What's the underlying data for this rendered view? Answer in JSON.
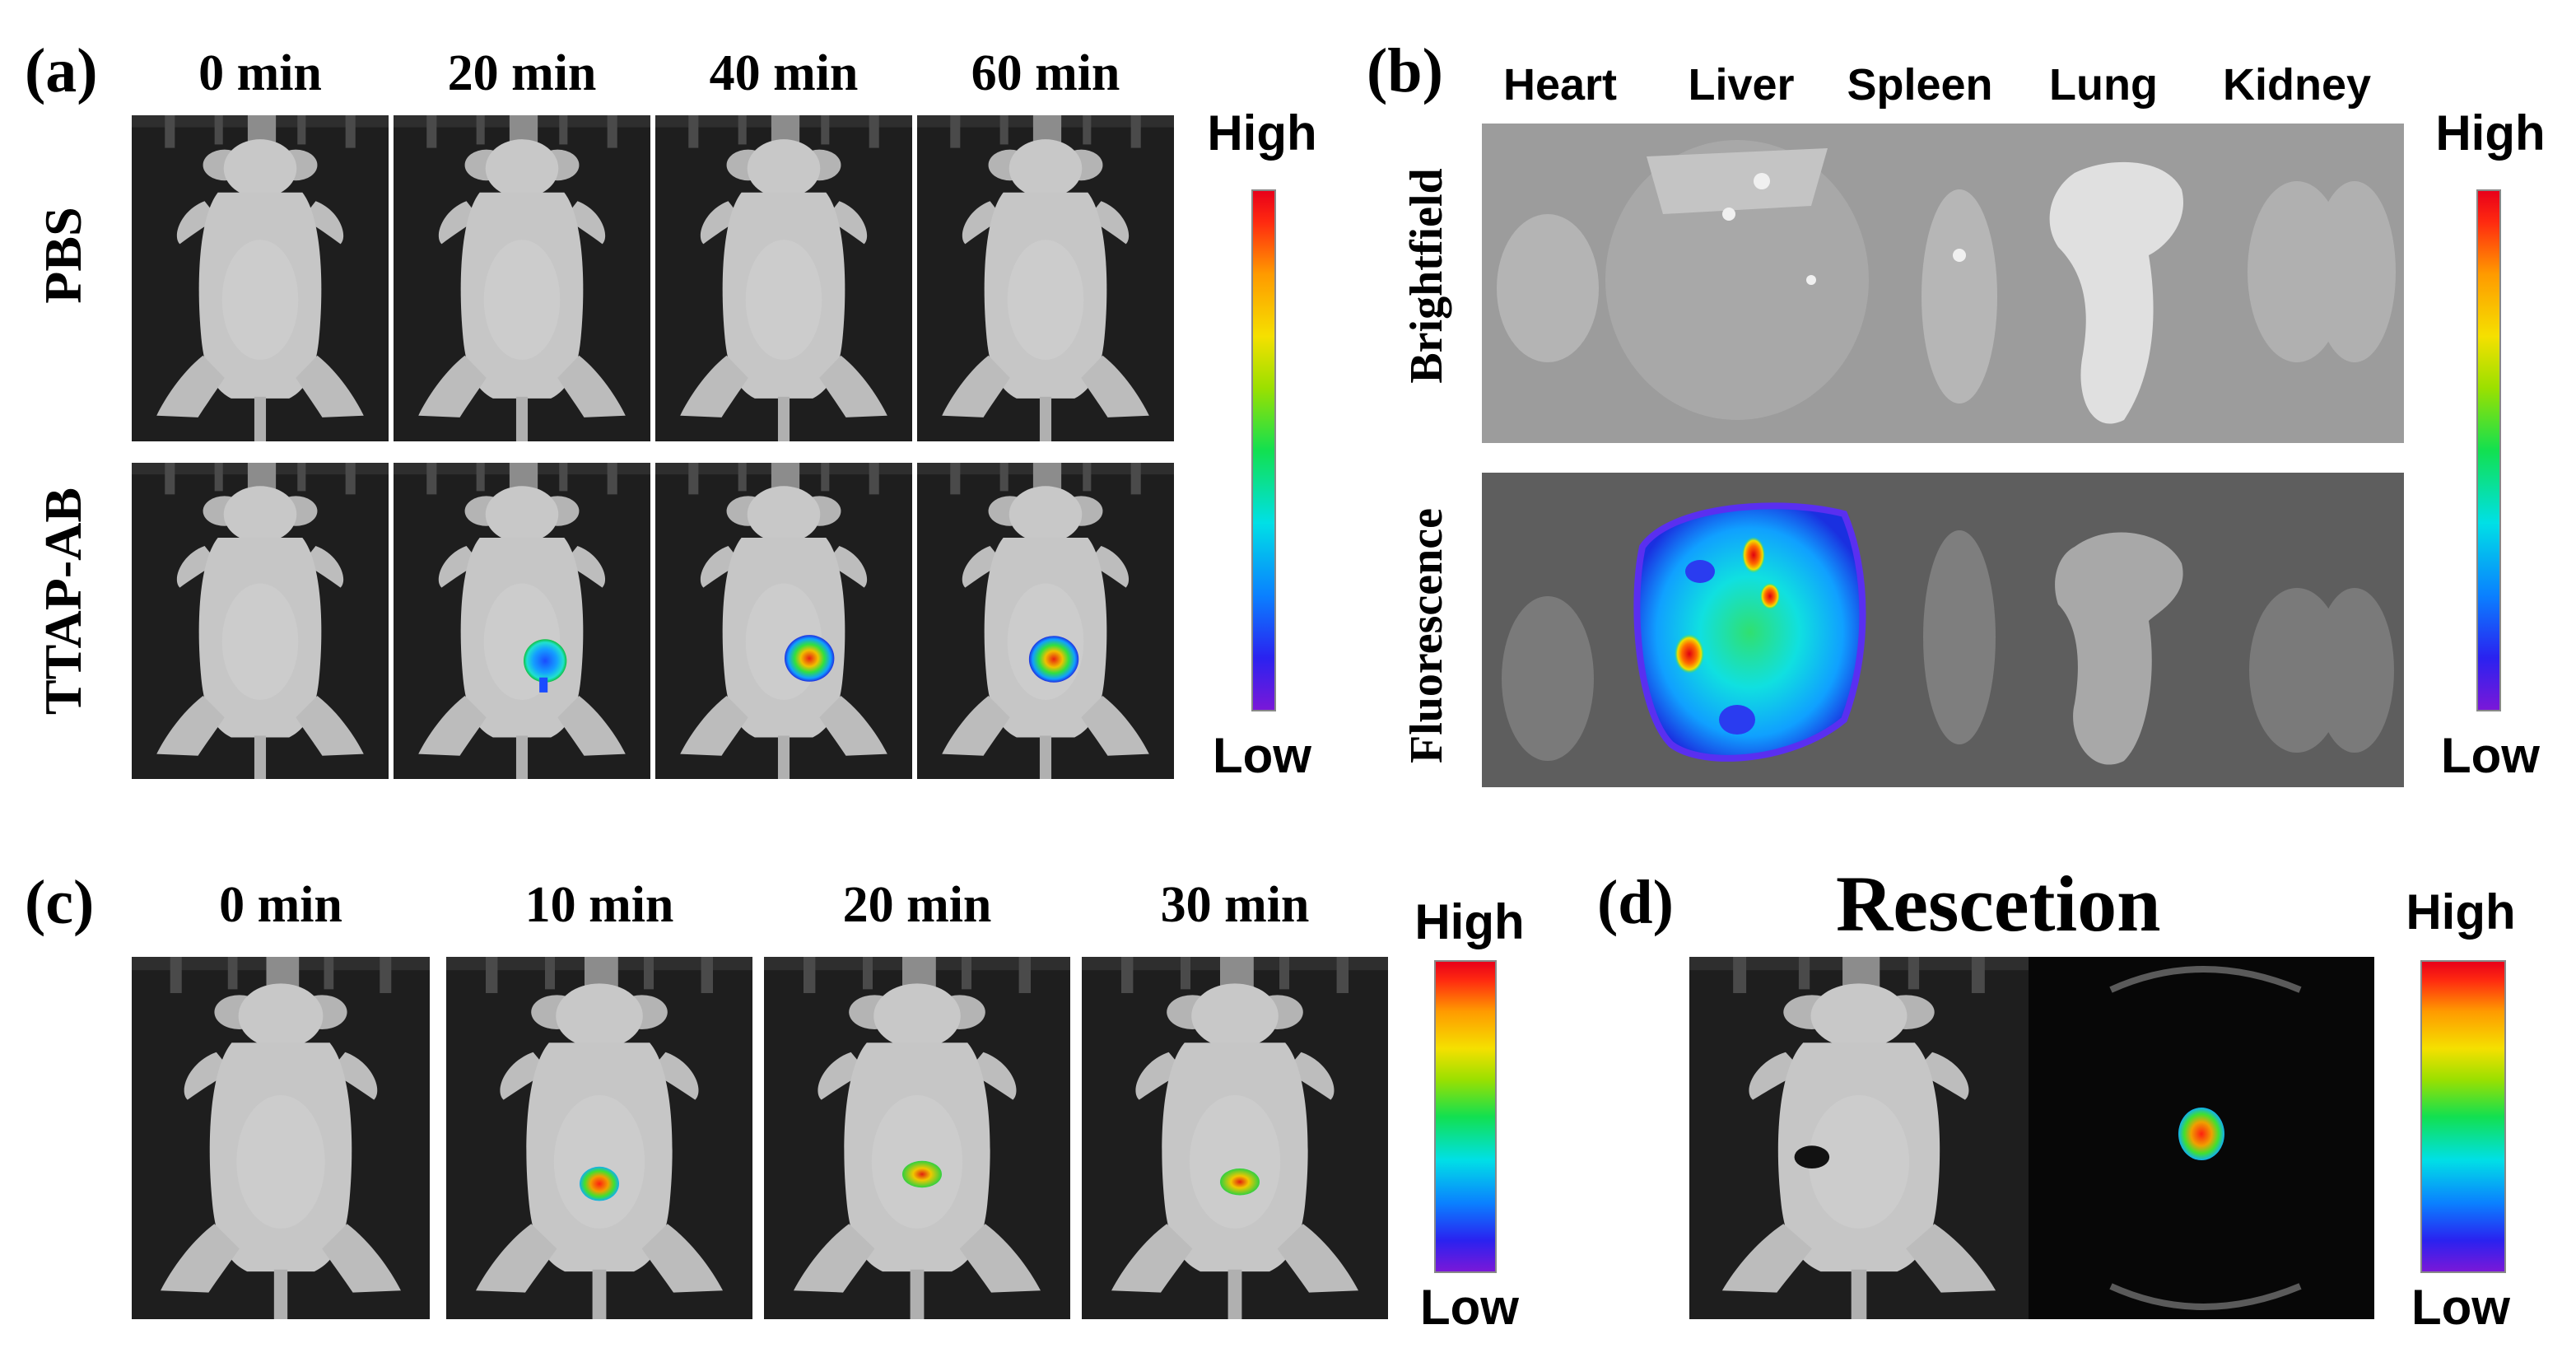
{
  "panel_a": {
    "label": "(a)",
    "times": [
      "0 min",
      "20 min",
      "40 min",
      "60 min"
    ],
    "rows": [
      "PBS",
      "TTAP-AB"
    ],
    "colorbar": {
      "high": "High",
      "low": "Low"
    }
  },
  "panel_b": {
    "label": "(b)",
    "organs": [
      "Heart",
      "Liver",
      "Spleen",
      "Lung",
      "Kidney"
    ],
    "rows": [
      "Brightfield",
      "Fluorescence"
    ],
    "colorbar": {
      "high": "High",
      "low": "Low"
    }
  },
  "panel_c": {
    "label": "(c)",
    "times": [
      "0 min",
      "10 min",
      "20 min",
      "30 min"
    ],
    "colorbar": {
      "high": "High",
      "low": "Low"
    }
  },
  "panel_d": {
    "label": "(d)",
    "title": "Rescetion",
    "colorbar": {
      "high": "High",
      "low": "Low"
    }
  },
  "colors": {
    "panel_bg": "#1e1e1e",
    "mouse_fill": "#c4c4c4",
    "colorbar_high": "#e8001a",
    "colorbar_low": "#7a18d8"
  }
}
